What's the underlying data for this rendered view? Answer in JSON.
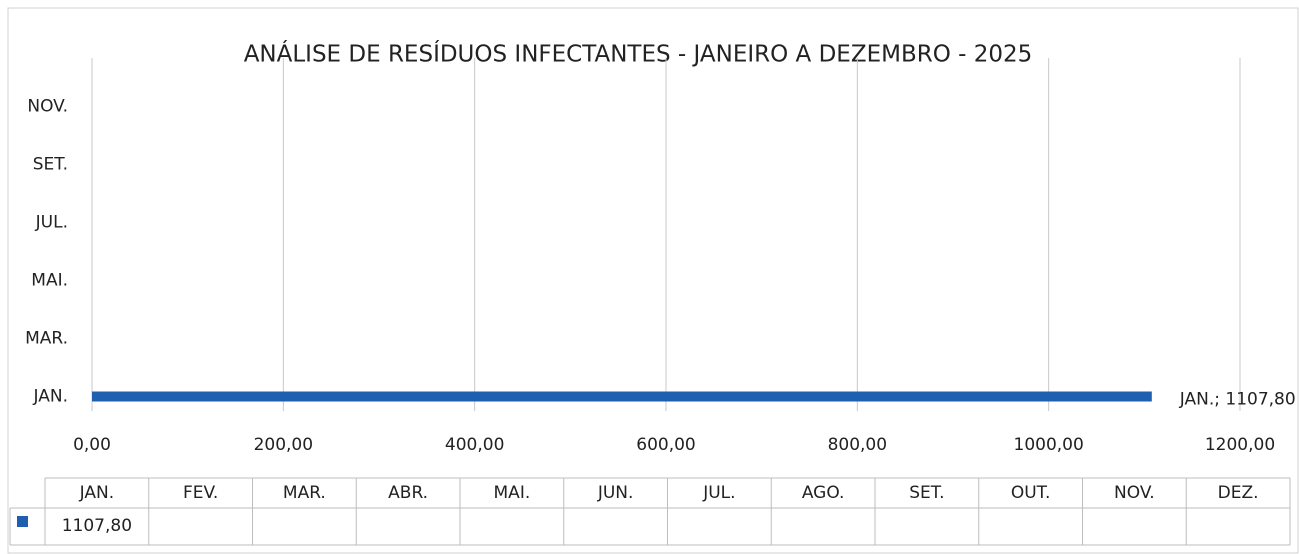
{
  "chart_data": {
    "type": "barh",
    "title": "ANÁLISE DE RESÍDUOS INFECTANTES - JANEIRO A DEZEMBRO - 2025",
    "categories": [
      "JAN.",
      "FEV.",
      "MAR.",
      "ABR.",
      "MAI.",
      "JUN.",
      "JUL.",
      "AGO.",
      "SET.",
      "OUT.",
      "NOV.",
      "DEZ."
    ],
    "values": [
      1107.8,
      null,
      null,
      null,
      null,
      null,
      null,
      null,
      null,
      null,
      null,
      null
    ],
    "value_labels": [
      "1107,80",
      null,
      null,
      null,
      null,
      null,
      null,
      null,
      null,
      null,
      null,
      null
    ],
    "data_labels": [
      "JAN.; 1107,80",
      null,
      null,
      null,
      null,
      null,
      null,
      null,
      null,
      null,
      null,
      null
    ],
    "color": "#1f5fb0",
    "xlim": [
      0,
      1200
    ],
    "xticks": [
      {
        "value": 0,
        "label": "0,00"
      },
      {
        "value": 200,
        "label": "200,00"
      },
      {
        "value": 400,
        "label": "400,00"
      },
      {
        "value": 600,
        "label": "600,00"
      },
      {
        "value": 800,
        "label": "800,00"
      },
      {
        "value": 1000,
        "label": "1000,00"
      },
      {
        "value": 1200,
        "label": "1200,00"
      }
    ],
    "grid": true
  }
}
